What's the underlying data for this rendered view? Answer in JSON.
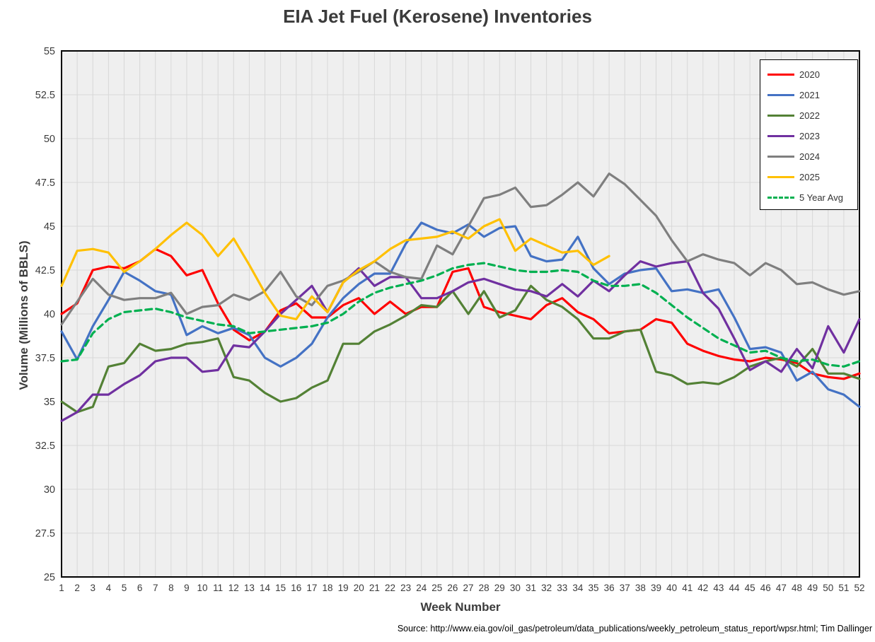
{
  "title": "EIA Jet Fuel (Kerosene) Inventories",
  "source_note": "Source: http://www.eia.gov/oil_gas/petroleum/data_publications/weekly_petroleum_status_report/wpsr.html; Tim Dallinger",
  "chart_data": {
    "type": "line",
    "title": "EIA Jet Fuel (Kerosene) Inventories",
    "xlabel": "Week Number",
    "ylabel": "Volume (Millions of BBLS)",
    "x_ticks": [
      1,
      2,
      3,
      4,
      5,
      6,
      7,
      8,
      9,
      10,
      11,
      12,
      13,
      14,
      15,
      16,
      17,
      18,
      19,
      20,
      21,
      22,
      23,
      24,
      25,
      26,
      27,
      28,
      29,
      30,
      31,
      32,
      33,
      34,
      35,
      36,
      37,
      38,
      39,
      40,
      41,
      42,
      43,
      44,
      45,
      46,
      47,
      48,
      49,
      50,
      51,
      52
    ],
    "ylim": [
      25,
      55
    ],
    "ytick_step": 2.5,
    "grid": true,
    "legend_position": "top-right",
    "plot_bg": "#efefef",
    "grid_color": "#d8d8d8",
    "frame_color": "#000000",
    "tick_color": "#3b3b3b",
    "series": [
      {
        "name": "2020",
        "color": "#ff0000",
        "dash": false,
        "values": [
          40.0,
          40.6,
          42.5,
          42.7,
          42.6,
          43.0,
          43.7,
          43.3,
          42.2,
          42.5,
          40.6,
          39.1,
          38.5,
          39.0,
          40.2,
          40.6,
          39.8,
          39.8,
          40.5,
          40.9,
          40.0,
          40.7,
          40.0,
          40.4,
          40.4,
          42.4,
          42.6,
          40.4,
          40.1,
          39.9,
          39.7,
          40.5,
          40.9,
          40.1,
          39.7,
          38.9,
          39.0,
          39.1,
          39.7,
          39.5,
          38.3,
          37.9,
          37.6,
          37.4,
          37.3,
          37.5,
          37.4,
          37.2,
          36.6,
          36.4,
          36.3,
          36.6
        ]
      },
      {
        "name": "2021",
        "color": "#4472c4",
        "dash": false,
        "values": [
          39.0,
          37.4,
          39.3,
          40.8,
          42.4,
          41.9,
          41.3,
          41.1,
          38.8,
          39.3,
          38.9,
          39.2,
          38.8,
          37.5,
          37.0,
          37.5,
          38.3,
          39.8,
          40.9,
          41.7,
          42.3,
          42.3,
          44.0,
          45.2,
          44.8,
          44.6,
          45.1,
          44.4,
          44.9,
          45.0,
          43.3,
          43.0,
          43.1,
          44.4,
          42.6,
          41.7,
          42.3,
          42.5,
          42.6,
          41.3,
          41.4,
          41.2,
          41.4,
          39.8,
          38.0,
          38.1,
          37.8,
          36.2,
          36.7,
          35.7,
          35.4,
          34.7
        ]
      },
      {
        "name": "2022",
        "color": "#538135",
        "dash": false,
        "values": [
          35.0,
          34.4,
          34.7,
          37.0,
          37.2,
          38.3,
          37.9,
          38.0,
          38.3,
          38.4,
          38.6,
          36.4,
          36.2,
          35.5,
          35.0,
          35.2,
          35.8,
          36.2,
          38.3,
          38.3,
          39.0,
          39.4,
          39.9,
          40.5,
          40.4,
          41.3,
          40.0,
          41.3,
          39.8,
          40.2,
          41.6,
          40.8,
          40.4,
          39.7,
          38.6,
          38.6,
          39.0,
          39.1,
          36.7,
          36.5,
          36.0,
          36.1,
          36.0,
          36.4,
          37.0,
          37.3,
          37.5,
          37.0,
          38.0,
          36.6,
          36.6,
          36.3
        ]
      },
      {
        "name": "2023",
        "color": "#7030a0",
        "dash": false,
        "values": [
          33.9,
          34.4,
          35.4,
          35.4,
          36.0,
          36.5,
          37.3,
          37.5,
          37.5,
          36.7,
          36.8,
          38.2,
          38.1,
          39.0,
          40.0,
          40.8,
          41.6,
          40.1,
          41.8,
          42.6,
          41.6,
          42.1,
          42.1,
          40.9,
          40.9,
          41.3,
          41.8,
          42.0,
          41.7,
          41.4,
          41.3,
          41.0,
          41.7,
          41.0,
          41.9,
          41.3,
          42.2,
          43.0,
          42.7,
          42.9,
          43.0,
          41.2,
          40.3,
          38.6,
          36.8,
          37.3,
          36.7,
          38.0,
          36.9,
          39.3,
          37.8,
          39.7
        ]
      },
      {
        "name": "2024",
        "color": "#7f7f7f",
        "dash": false,
        "values": [
          39.4,
          40.7,
          42.0,
          41.1,
          40.8,
          40.9,
          40.9,
          41.2,
          40.0,
          40.4,
          40.5,
          41.1,
          40.8,
          41.3,
          42.4,
          41.0,
          40.5,
          41.6,
          41.9,
          42.4,
          43.0,
          42.4,
          42.1,
          42.0,
          43.9,
          43.4,
          45.0,
          46.6,
          46.8,
          47.2,
          46.1,
          46.2,
          46.8,
          47.5,
          46.7,
          48.0,
          47.4,
          46.5,
          45.6,
          44.2,
          43.0,
          43.4,
          43.1,
          42.9,
          42.2,
          42.9,
          42.5,
          41.7,
          41.8,
          41.4,
          41.1,
          41.3
        ]
      },
      {
        "name": "2025",
        "color": "#ffc000",
        "dash": false,
        "values": [
          41.6,
          43.6,
          43.7,
          43.5,
          42.4,
          43.0,
          43.7,
          44.5,
          45.2,
          44.5,
          43.3,
          44.3,
          42.8,
          41.2,
          39.9,
          39.7,
          41.0,
          40.1,
          41.8,
          42.5,
          43.0,
          43.7,
          44.2,
          44.3,
          44.4,
          44.7,
          44.3,
          45.0,
          45.4,
          43.6,
          44.3,
          43.9,
          43.5,
          43.6,
          42.8,
          43.3
        ]
      },
      {
        "name": "5 Year Avg",
        "color": "#00b050",
        "dash": true,
        "values": [
          37.3,
          37.4,
          38.9,
          39.7,
          40.1,
          40.2,
          40.3,
          40.1,
          39.8,
          39.6,
          39.4,
          39.3,
          38.9,
          39.0,
          39.1,
          39.2,
          39.3,
          39.5,
          40.0,
          40.7,
          41.2,
          41.5,
          41.7,
          41.9,
          42.2,
          42.6,
          42.8,
          42.9,
          42.7,
          42.5,
          42.4,
          42.4,
          42.5,
          42.4,
          41.9,
          41.6,
          41.6,
          41.7,
          41.2,
          40.5,
          39.8,
          39.2,
          38.6,
          38.2,
          37.8,
          37.9,
          37.5,
          37.3,
          37.4,
          37.1,
          37.0,
          37.3
        ]
      }
    ]
  }
}
